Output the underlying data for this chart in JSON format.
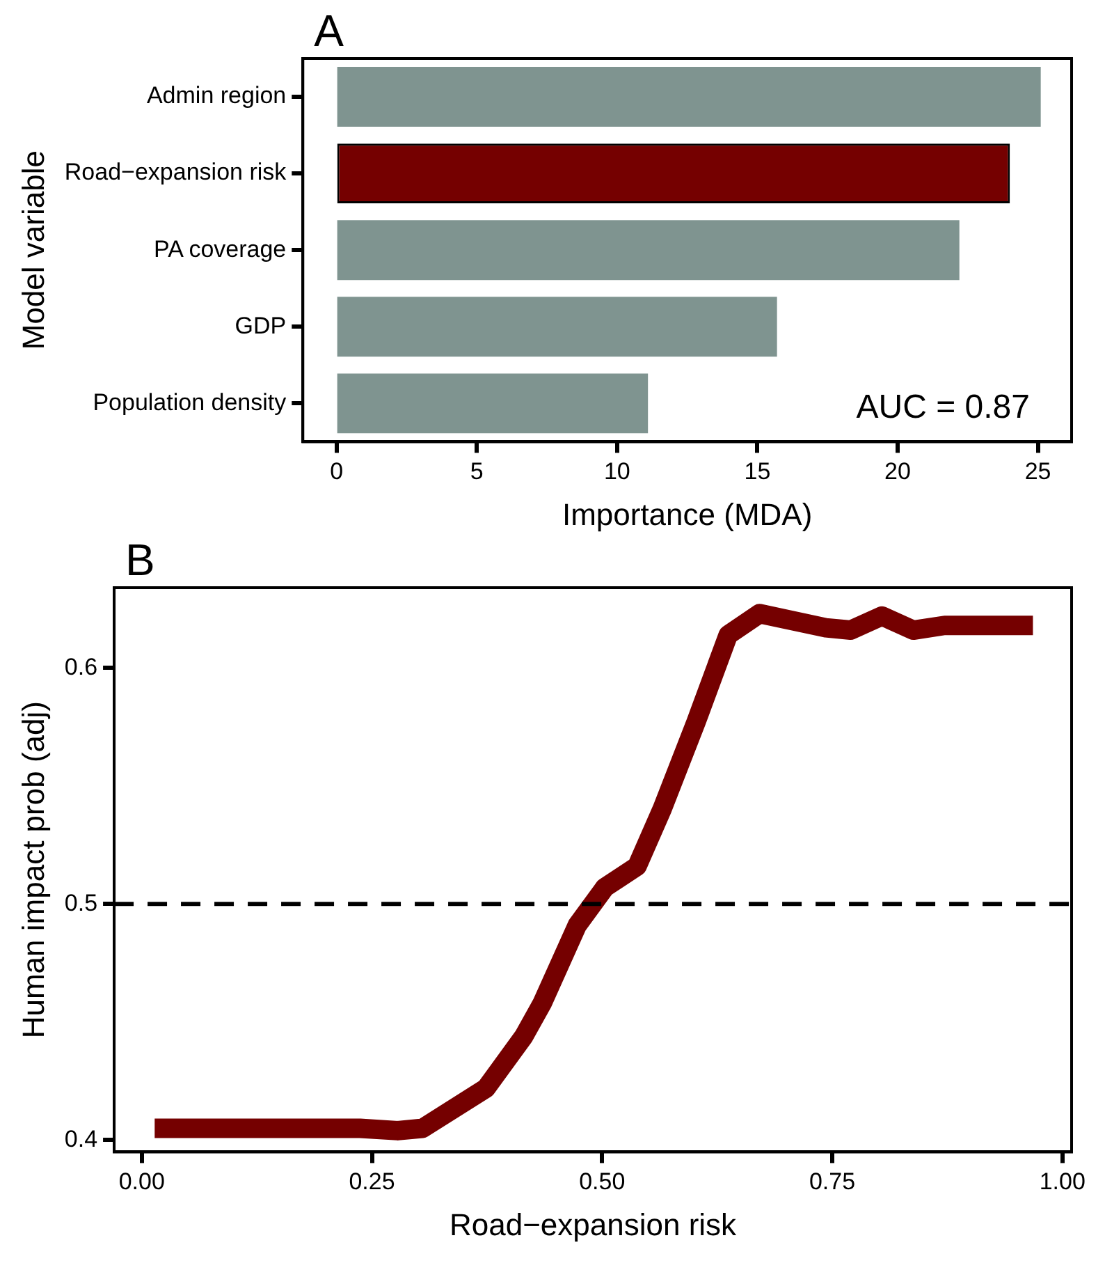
{
  "chart_data": [
    {
      "type": "bar",
      "title": "A",
      "orientation": "horizontal",
      "categories": [
        "Admin region",
        "Road−expansion risk",
        "PA coverage",
        "GDP",
        "Population density"
      ],
      "values": [
        25.1,
        24.0,
        22.2,
        15.7,
        11.1
      ],
      "colors": [
        "#7f9490",
        "#750000",
        "#7f9490",
        "#7f9490",
        "#7f9490"
      ],
      "xlim": [
        -1.2,
        26.2
      ],
      "xticks": [
        0,
        5,
        10,
        15,
        20,
        25
      ],
      "xlabel": "Importance (MDA)",
      "ylabel": "Model variable",
      "annotations": [
        "AUC = 0.87"
      ],
      "grid": false,
      "legend": false
    },
    {
      "type": "line",
      "title": "B",
      "xlabel": "Road−expansion risk",
      "ylabel": "Human impact prob (adj)",
      "xlim": [
        -0.03,
        1.01
      ],
      "ylim": [
        0.395,
        0.634
      ],
      "xticks": [
        {
          "value": 0,
          "label": "0.00"
        },
        {
          "value": 0.25,
          "label": "0.25"
        },
        {
          "value": 0.5,
          "label": "0.50"
        },
        {
          "value": 0.75,
          "label": "0.75"
        },
        {
          "value": 1,
          "label": "1.00"
        }
      ],
      "yticks": [
        0.4,
        0.5,
        0.6
      ],
      "grid": false,
      "legend": false,
      "marker": "none",
      "line_style": "solid",
      "ref_lines": [
        {
          "axis": "y",
          "value": 0.5,
          "color": "#000000",
          "line_style": "dashed"
        }
      ],
      "series": [
        {
          "color": "#750000",
          "x": [
            0.014,
            0.237,
            0.278,
            0.305,
            0.374,
            0.415,
            0.435,
            0.473,
            0.503,
            0.538,
            0.565,
            0.602,
            0.637,
            0.671,
            0.743,
            0.77,
            0.804,
            0.838,
            0.872,
            0.968
          ],
          "values": [
            0.405,
            0.405,
            0.404,
            0.405,
            0.422,
            0.444,
            0.458,
            0.491,
            0.507,
            0.516,
            0.54,
            0.577,
            0.614,
            0.623,
            0.617,
            0.616,
            0.622,
            0.616,
            0.618,
            0.618
          ]
        }
      ]
    }
  ]
}
